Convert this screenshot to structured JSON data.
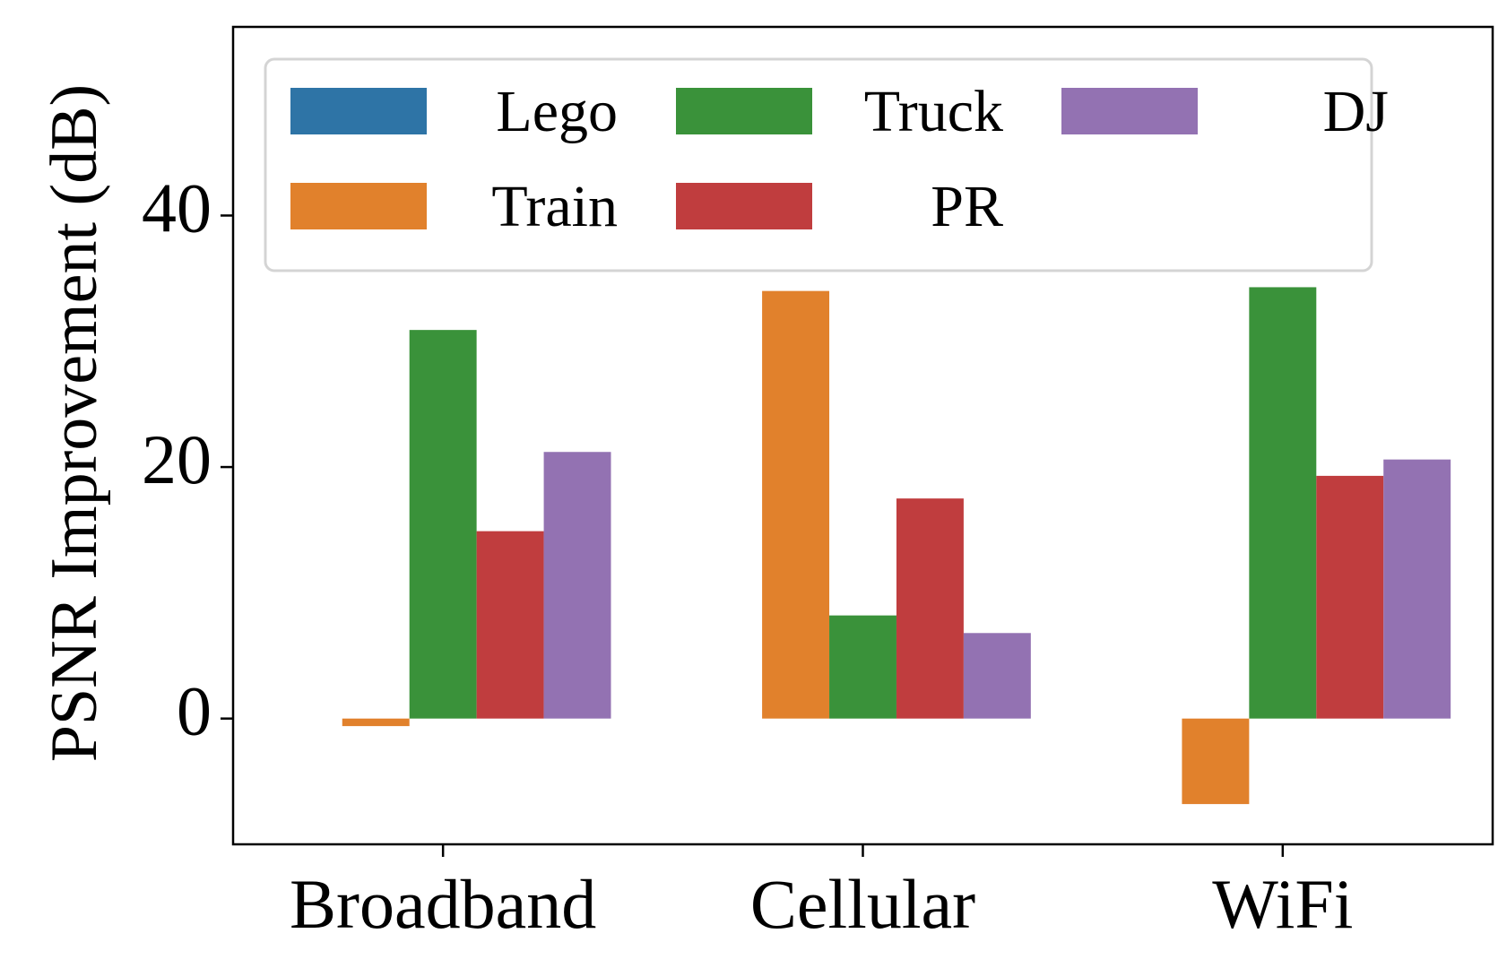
{
  "chart_data": {
    "type": "bar",
    "categories": [
      "Broadband",
      "Cellular",
      "WiFi"
    ],
    "series": [
      {
        "name": "Lego",
        "color": "#2e74a6",
        "values": [
          0,
          0,
          0
        ]
      },
      {
        "name": "Train",
        "color": "#e1812c",
        "values": [
          -0.6,
          34.0,
          -6.8
        ]
      },
      {
        "name": "Truck",
        "color": "#3a923a",
        "values": [
          30.9,
          8.2,
          34.3
        ]
      },
      {
        "name": "PR",
        "color": "#c03d3e",
        "values": [
          14.9,
          17.5,
          19.3
        ]
      },
      {
        "name": "DJ",
        "color": "#9372b2",
        "values": [
          21.2,
          6.8,
          20.6
        ]
      }
    ],
    "xlabel": "",
    "ylabel": "PSNR Improvement (dB)",
    "ylim": [
      -10,
      55
    ],
    "yticks": [
      0,
      20,
      40
    ],
    "grid": false,
    "legend": {
      "position": "top",
      "columns": 3
    }
  }
}
